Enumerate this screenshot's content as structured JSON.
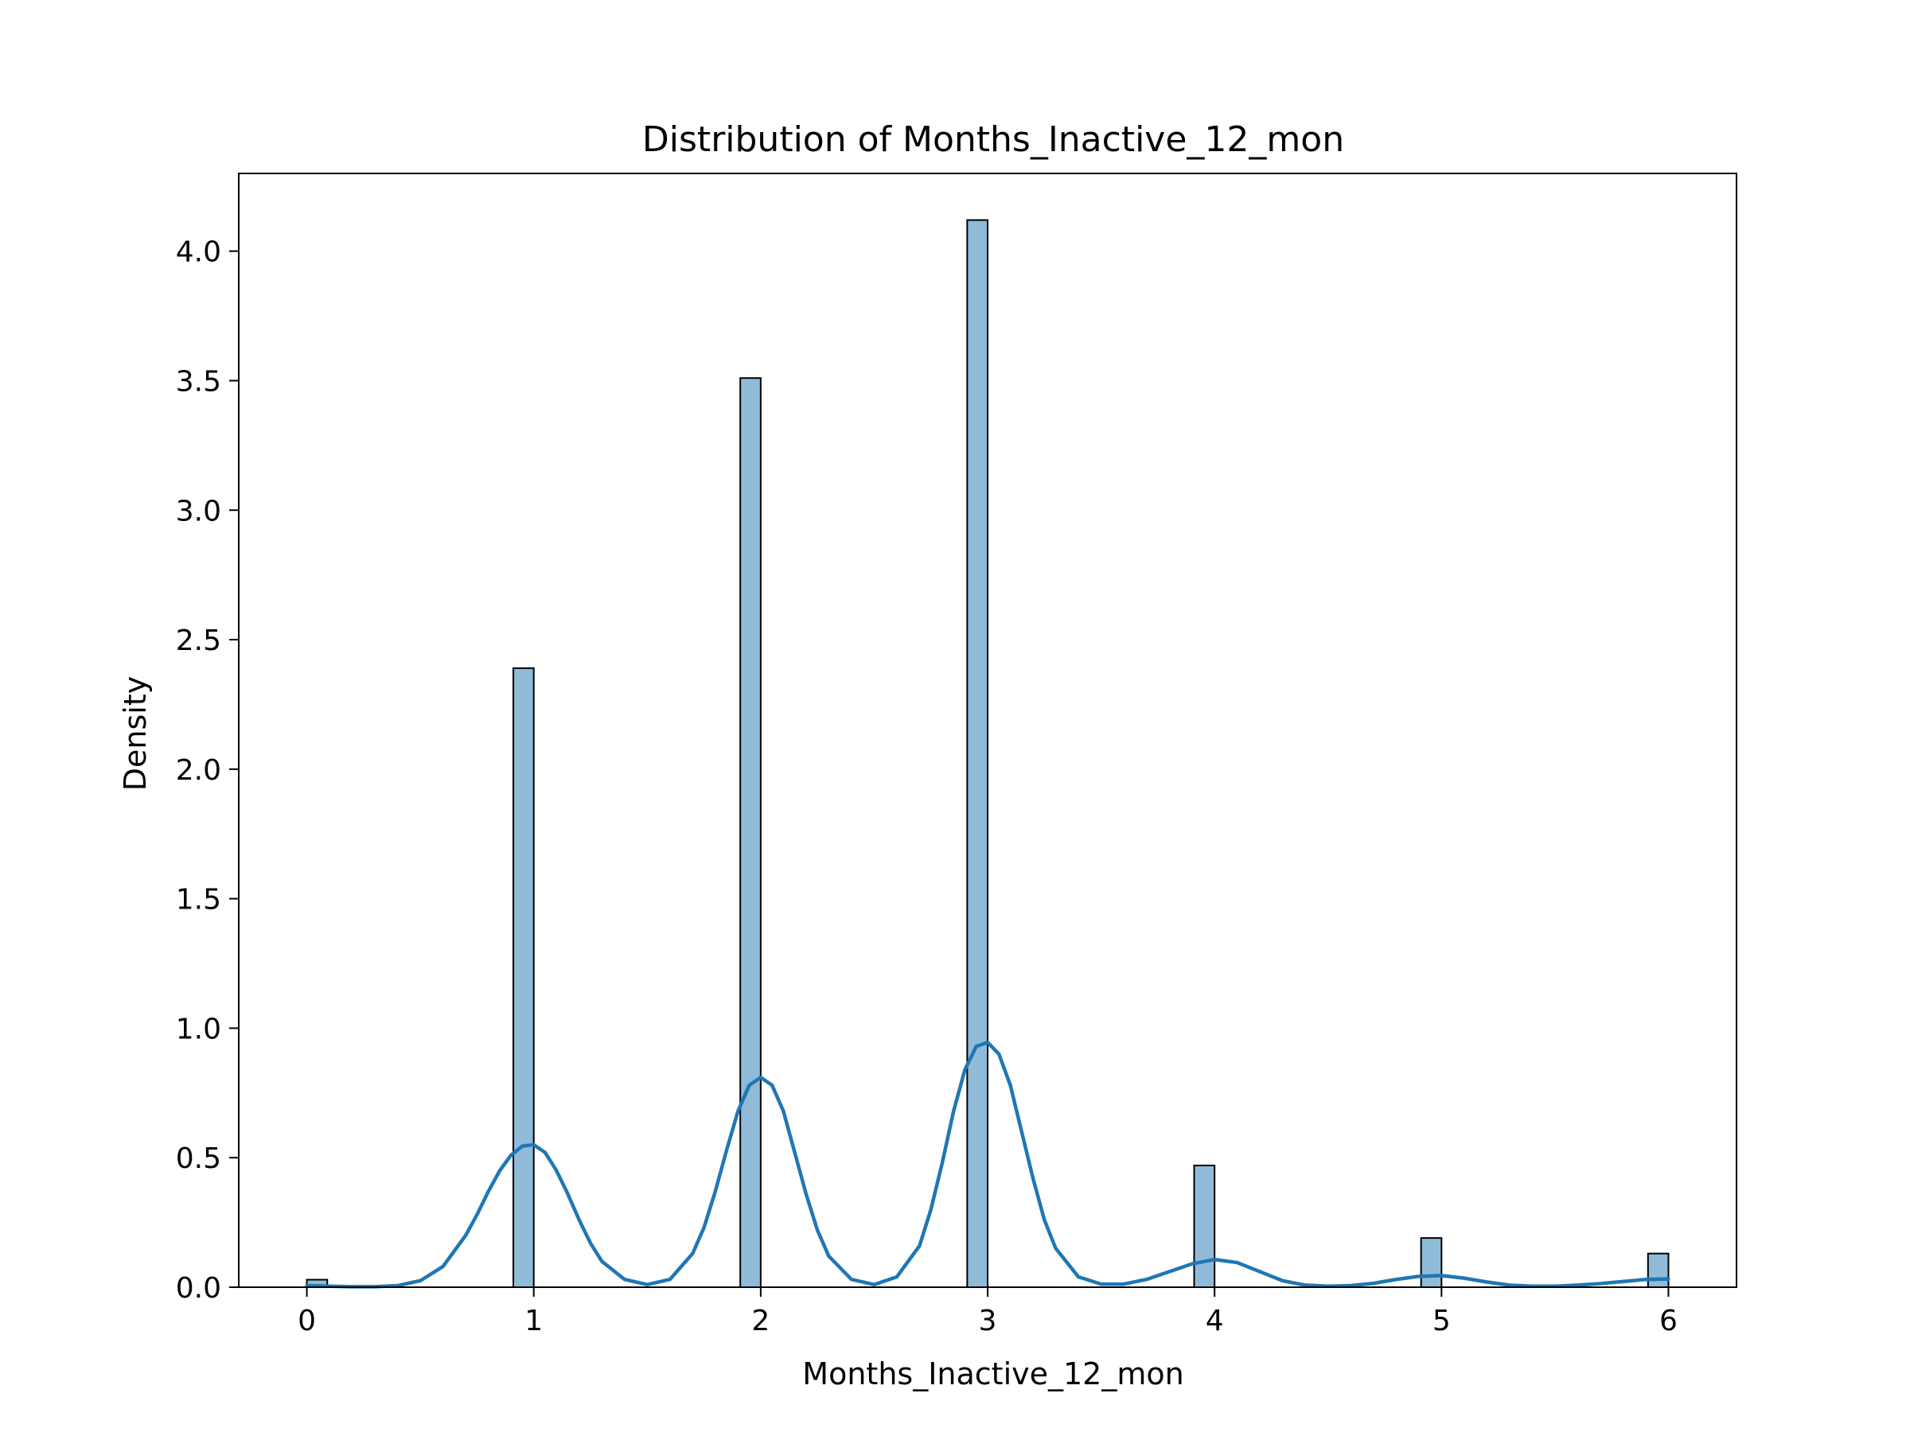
{
  "chart_data": {
    "type": "bar",
    "title": "Distribution of Months_Inactive_12_mon",
    "xlabel": "Months_Inactive_12_mon",
    "ylabel": "Density",
    "xlim": [
      -0.3,
      6.3
    ],
    "ylim": [
      0,
      4.3
    ],
    "x_ticks": [
      0,
      1,
      2,
      3,
      4,
      5,
      6
    ],
    "y_ticks": [
      0.0,
      0.5,
      1.0,
      1.5,
      2.0,
      2.5,
      3.0,
      3.5,
      4.0
    ],
    "x_tick_labels": [
      "0",
      "1",
      "2",
      "3",
      "4",
      "5",
      "6"
    ],
    "y_tick_labels": [
      "0.0",
      "0.5",
      "1.0",
      "1.5",
      "2.0",
      "2.5",
      "3.0",
      "3.5",
      "4.0"
    ],
    "grid": false,
    "bar_width": 0.09,
    "histogram": {
      "x": [
        0.045,
        0.955,
        1.955,
        2.955,
        3.955,
        4.955,
        5.955
      ],
      "density": [
        0.029,
        2.39,
        3.51,
        4.12,
        0.47,
        0.19,
        0.13
      ]
    },
    "kde": {
      "x": [
        0.0,
        0.1,
        0.2,
        0.3,
        0.4,
        0.5,
        0.6,
        0.7,
        0.75,
        0.8,
        0.85,
        0.9,
        0.95,
        1.0,
        1.05,
        1.1,
        1.15,
        1.2,
        1.25,
        1.3,
        1.4,
        1.5,
        1.6,
        1.7,
        1.75,
        1.8,
        1.85,
        1.9,
        1.95,
        2.0,
        2.05,
        2.1,
        2.15,
        2.2,
        2.25,
        2.3,
        2.4,
        2.5,
        2.6,
        2.7,
        2.75,
        2.8,
        2.85,
        2.9,
        2.95,
        3.0,
        3.05,
        3.1,
        3.15,
        3.2,
        3.25,
        3.3,
        3.4,
        3.5,
        3.6,
        3.7,
        3.8,
        3.9,
        4.0,
        4.1,
        4.2,
        4.3,
        4.4,
        4.5,
        4.6,
        4.7,
        4.8,
        4.9,
        5.0,
        5.1,
        5.2,
        5.3,
        5.4,
        5.5,
        5.6,
        5.7,
        5.8,
        5.9,
        6.0
      ],
      "density": [
        0.006,
        0.004,
        0.002,
        0.002,
        0.006,
        0.025,
        0.08,
        0.2,
        0.28,
        0.37,
        0.45,
        0.51,
        0.545,
        0.55,
        0.52,
        0.45,
        0.36,
        0.26,
        0.17,
        0.1,
        0.03,
        0.01,
        0.03,
        0.13,
        0.23,
        0.37,
        0.53,
        0.68,
        0.78,
        0.81,
        0.78,
        0.68,
        0.52,
        0.36,
        0.22,
        0.12,
        0.03,
        0.01,
        0.04,
        0.16,
        0.3,
        0.48,
        0.68,
        0.84,
        0.93,
        0.945,
        0.9,
        0.78,
        0.6,
        0.42,
        0.26,
        0.15,
        0.04,
        0.012,
        0.012,
        0.03,
        0.06,
        0.09,
        0.107,
        0.095,
        0.06,
        0.025,
        0.008,
        0.004,
        0.006,
        0.015,
        0.03,
        0.042,
        0.045,
        0.035,
        0.02,
        0.008,
        0.004,
        0.004,
        0.008,
        0.014,
        0.022,
        0.03,
        0.032
      ]
    }
  }
}
